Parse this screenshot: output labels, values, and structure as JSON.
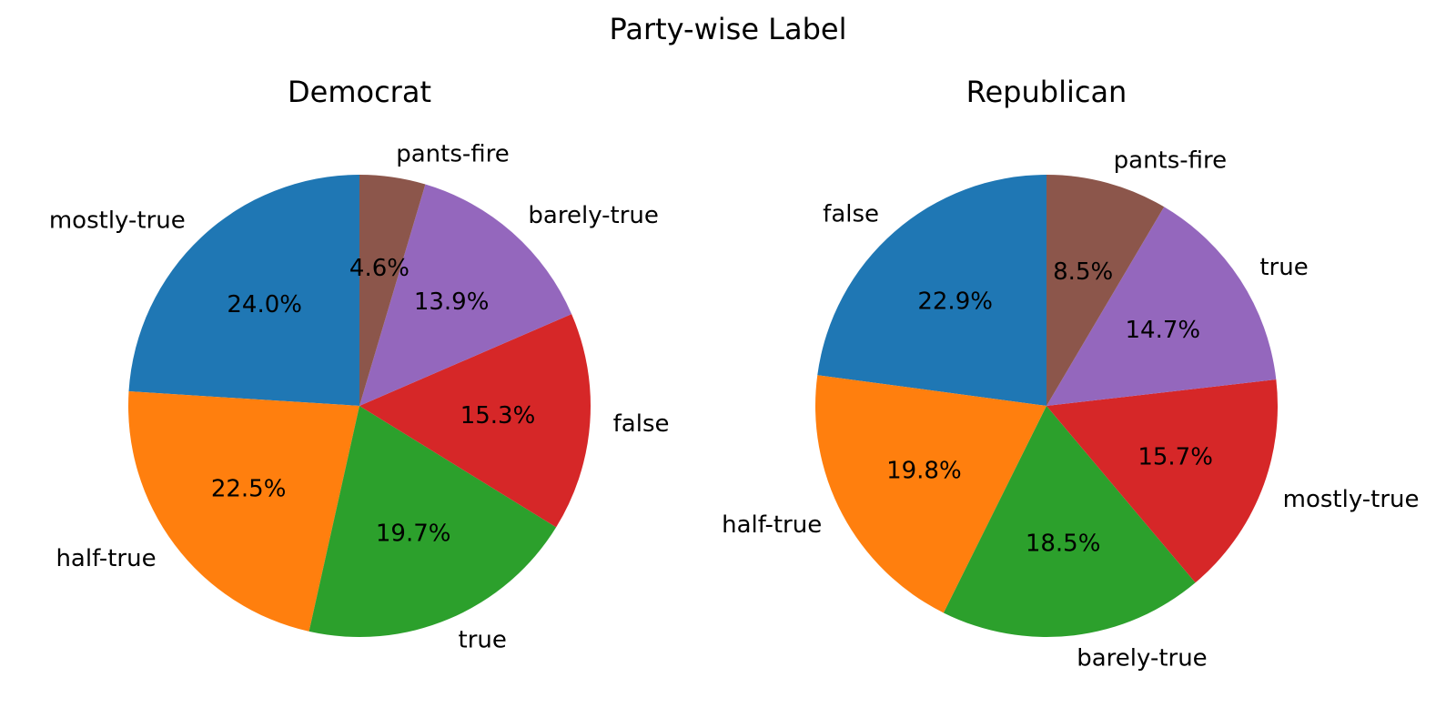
{
  "figure": {
    "suptitle": "Party-wise Label"
  },
  "chart_data": [
    {
      "type": "pie",
      "title": "Democrat",
      "labels": [
        "mostly-true",
        "half-true",
        "true",
        "false",
        "barely-true",
        "pants-fire"
      ],
      "values": [
        24.0,
        22.5,
        19.7,
        15.3,
        13.9,
        4.6
      ],
      "value_labels": [
        "24.0%",
        "22.5%",
        "19.7%",
        "15.3%",
        "13.9%",
        "4.6%"
      ],
      "colors": [
        "#1f77b4",
        "#ff7f0e",
        "#2ca02c",
        "#d62728",
        "#9467bd",
        "#8c564b"
      ],
      "start_angle_deg": 90,
      "direction": "counterclockwise"
    },
    {
      "type": "pie",
      "title": "Republican",
      "labels": [
        "false",
        "half-true",
        "barely-true",
        "mostly-true",
        "true",
        "pants-fire"
      ],
      "values": [
        22.9,
        19.8,
        18.5,
        15.7,
        14.7,
        8.5
      ],
      "value_labels": [
        "22.9%",
        "19.8%",
        "18.5%",
        "15.7%",
        "14.7%",
        "8.5%"
      ],
      "colors": [
        "#1f77b4",
        "#ff7f0e",
        "#2ca02c",
        "#d62728",
        "#9467bd",
        "#8c564b"
      ],
      "start_angle_deg": 90,
      "direction": "counterclockwise"
    }
  ]
}
